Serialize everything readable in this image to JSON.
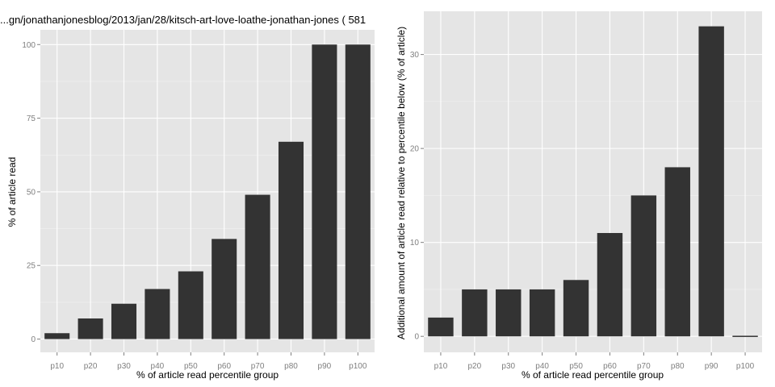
{
  "chart_data": [
    {
      "type": "bar",
      "title": "...gn/jonathanjonesblog/2013/jan/28/kitsch-art-love-loathe-jonathan-jones ( 581",
      "xlabel": "% of article read percentile group",
      "ylabel": "% of article read",
      "categories": [
        "p10",
        "p20",
        "p30",
        "p40",
        "p50",
        "p60",
        "p70",
        "p80",
        "p90",
        "p100"
      ],
      "values": [
        2,
        7,
        12,
        17,
        23,
        34,
        49,
        67,
        100,
        100
      ],
      "yticks": [
        0,
        25,
        50,
        75,
        100
      ],
      "ylim": [
        -4.5,
        105
      ],
      "grid": true,
      "colors": {
        "bar": "#333333",
        "panel": "#e5e5e5",
        "grid": "#ffffff"
      }
    },
    {
      "type": "bar",
      "title": "",
      "xlabel": "% of article read percentile group",
      "ylabel": "Additional amount of article read relative to percentile below (% of article)",
      "categories": [
        "p10",
        "p20",
        "p30",
        "p40",
        "p50",
        "p60",
        "p70",
        "p80",
        "p90",
        "p100"
      ],
      "values": [
        2,
        5,
        5,
        5,
        6,
        11,
        15,
        18,
        33,
        0
      ],
      "yticks": [
        0,
        10,
        20,
        30
      ],
      "ylim": [
        -1.7,
        34.6
      ],
      "grid": true,
      "colors": {
        "bar": "#333333",
        "panel": "#e5e5e5",
        "grid": "#ffffff"
      }
    }
  ]
}
